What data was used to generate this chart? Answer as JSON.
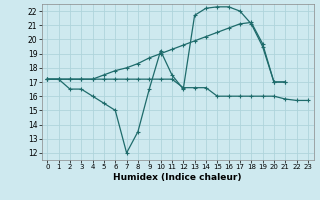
{
  "xlabel": "Humidex (Indice chaleur)",
  "bg_color": "#cee9ef",
  "grid_color": "#afd4db",
  "line_color": "#1e6b6b",
  "xlim": [
    -0.5,
    23.5
  ],
  "ylim": [
    11.5,
    22.5
  ],
  "xticks": [
    0,
    1,
    2,
    3,
    4,
    5,
    6,
    7,
    8,
    9,
    10,
    11,
    12,
    13,
    14,
    15,
    16,
    17,
    18,
    19,
    20,
    21,
    22,
    23
  ],
  "yticks": [
    12,
    13,
    14,
    15,
    16,
    17,
    18,
    19,
    20,
    21,
    22
  ],
  "line1_x": [
    0,
    1,
    2,
    3,
    4,
    5,
    6,
    7,
    8,
    9,
    10,
    11,
    12,
    13,
    14,
    15,
    16,
    17,
    18,
    19,
    20,
    21,
    22,
    23
  ],
  "line1_y": [
    17.2,
    17.2,
    17.2,
    17.2,
    17.2,
    17.2,
    17.2,
    17.2,
    17.2,
    17.2,
    17.2,
    17.2,
    16.6,
    16.6,
    16.6,
    16.0,
    16.0,
    16.0,
    16.0,
    16.0,
    16.0,
    15.8,
    15.7,
    15.7
  ],
  "line2_x": [
    0,
    1,
    2,
    3,
    4,
    5,
    6,
    7,
    8,
    9,
    10,
    11,
    12,
    13,
    14,
    15,
    16,
    17,
    18,
    19,
    20,
    21
  ],
  "line2_y": [
    17.2,
    17.2,
    16.5,
    16.5,
    16.0,
    15.5,
    15.0,
    12.0,
    13.5,
    16.5,
    19.2,
    17.5,
    16.5,
    21.7,
    22.2,
    22.3,
    22.3,
    22.0,
    21.1,
    19.5,
    17.0,
    17.0
  ],
  "line3_x": [
    0,
    1,
    2,
    3,
    4,
    5,
    6,
    7,
    8,
    9,
    10,
    11,
    12,
    13,
    14,
    15,
    16,
    17,
    18,
    19,
    20,
    21
  ],
  "line3_y": [
    17.2,
    17.2,
    17.2,
    17.2,
    17.2,
    17.5,
    17.8,
    18.0,
    18.3,
    18.7,
    19.0,
    19.3,
    19.6,
    19.9,
    20.2,
    20.5,
    20.8,
    21.1,
    21.2,
    19.7,
    17.0,
    17.0
  ]
}
